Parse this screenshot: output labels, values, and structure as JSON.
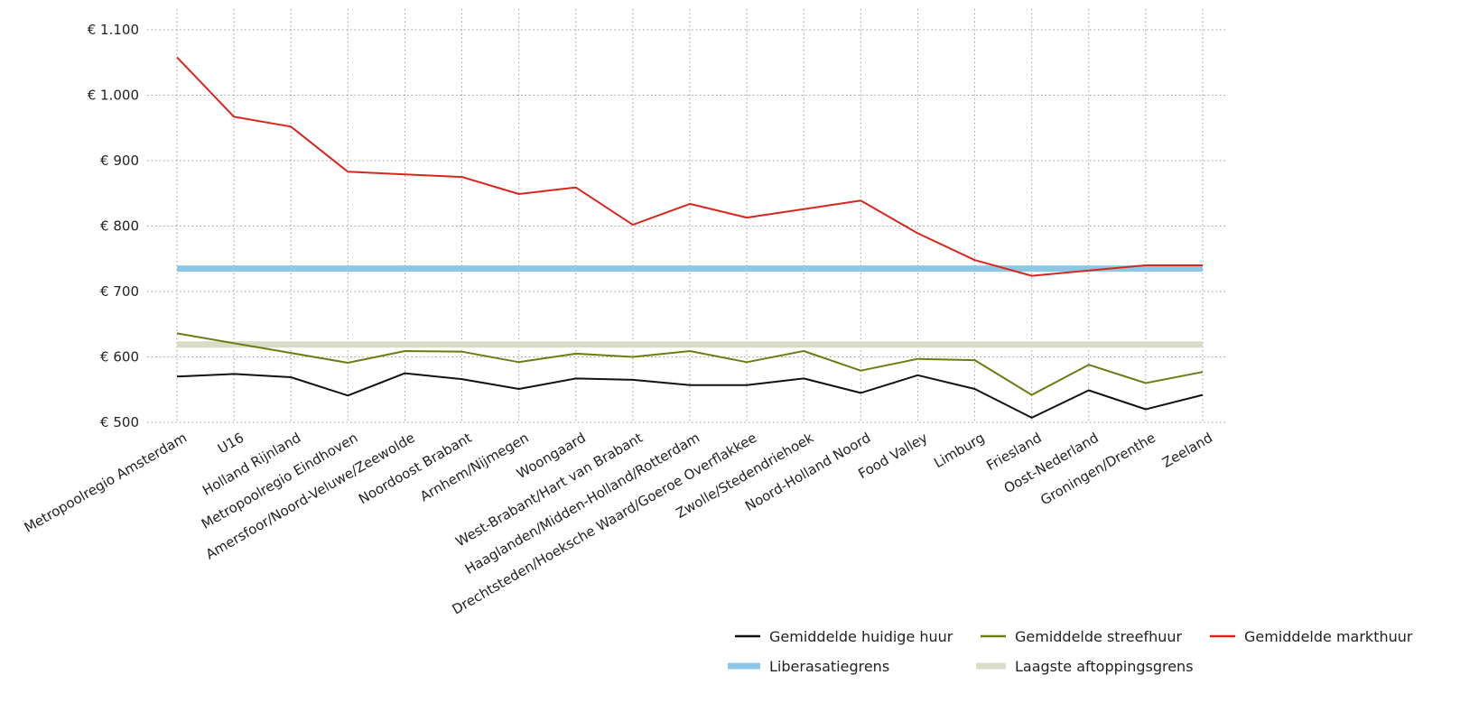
{
  "chart_data": {
    "type": "line",
    "title": "",
    "xlabel": "",
    "ylabel": "",
    "ylim": [
      500,
      1100
    ],
    "yticks": [
      500,
      600,
      700,
      800,
      900,
      1000,
      1100
    ],
    "ytick_labels": [
      "€ 500",
      "€ 600",
      "€ 700",
      "€ 800",
      "€ 900",
      "€ 1.000",
      "€ 1.100"
    ],
    "grid": true,
    "legend_position": "bottom-right",
    "categories": [
      "Metropoolregio Amsterdam",
      "U16",
      "Holland Rijnland",
      "Metropoolregio Eindhoven",
      "Amersfoor/Noord-Veluwe/Zeewolde",
      "Noordoost Brabant",
      "Arnhem/Nijmegen",
      "Woongaard",
      "West-Brabant/Hart van Brabant",
      "Haaglanden/Midden-Holland/Rotterdam",
      "Drechtsteden/Hoeksche Waard/Goeroe Overflakkee",
      "Zwolle/Stedendriehoek",
      "Noord-Holland Noord",
      "Food Valley",
      "Limburg",
      "Friesland",
      "Oost-Nederland",
      "Groningen/Drenthe",
      "Zeeland"
    ],
    "series": [
      {
        "name": "Gemiddelde huidige huur",
        "color": "#111111",
        "values": [
          570,
          574,
          569,
          541,
          575,
          566,
          551,
          567,
          565,
          557,
          557,
          567,
          545,
          572,
          551,
          507,
          549,
          520,
          542
        ]
      },
      {
        "name": "Gemiddelde streefhuur",
        "color": "#6e7a12",
        "values": [
          636,
          621,
          606,
          591,
          609,
          608,
          592,
          605,
          600,
          609,
          592,
          609,
          579,
          597,
          595,
          542,
          588,
          560,
          577
        ]
      },
      {
        "name": "Gemiddelde markthuur",
        "color": "#d9261c",
        "values": [
          1058,
          967,
          952,
          883,
          879,
          875,
          849,
          859,
          802,
          834,
          813,
          826,
          839,
          789,
          748,
          724,
          732,
          740,
          740
        ]
      }
    ],
    "reference_lines": [
      {
        "name": "Liberasatiegrens",
        "color": "#8cc8e6",
        "value": 735
      },
      {
        "name": "Laagste aftoppingsgrens",
        "color": "#d9dcc6",
        "value": 619
      }
    ]
  }
}
